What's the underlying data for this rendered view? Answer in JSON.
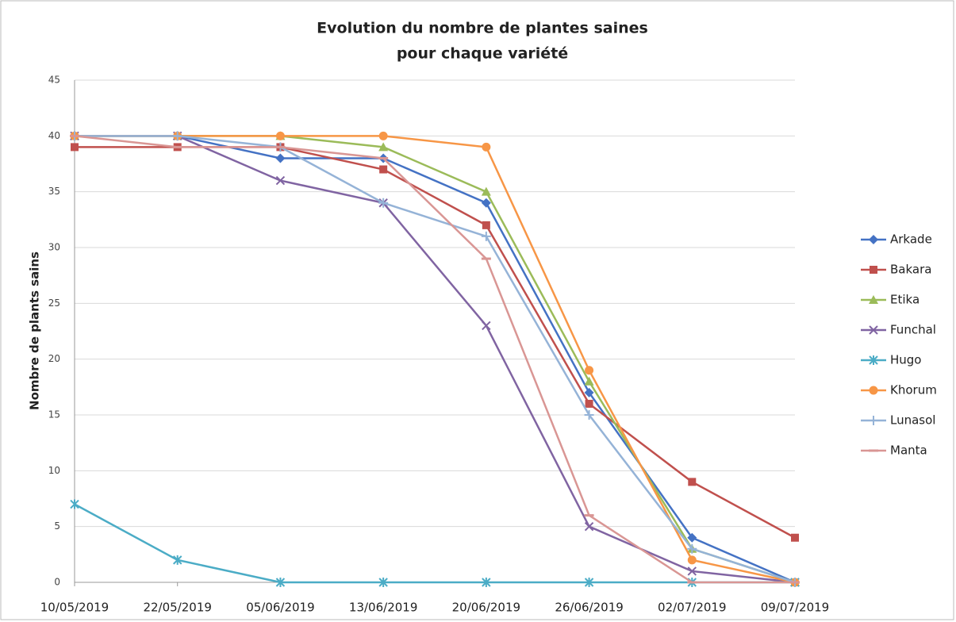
{
  "chart_data": {
    "type": "line",
    "title": [
      "Evolution du nombre de plantes saines",
      "pour chaque variété"
    ],
    "y_label": "Nombre de plants sains",
    "categories": [
      "10/05/2019",
      "22/05/2019",
      "05/06/2019",
      "13/06/2019",
      "20/06/2019",
      "26/06/2019",
      "02/07/2019",
      "09/07/2019"
    ],
    "ylim": [
      0,
      45
    ],
    "yticks": [
      0,
      5,
      10,
      15,
      20,
      25,
      30,
      35,
      40,
      45
    ],
    "grid": true,
    "legend": "right",
    "series": [
      {
        "name": "Arkade",
        "color": "#4472c4",
        "marker": "diamond",
        "values": [
          40,
          40,
          38,
          38,
          34,
          17,
          4,
          0
        ]
      },
      {
        "name": "Bakara",
        "color": "#c0504d",
        "marker": "square",
        "values": [
          39,
          39,
          39,
          37,
          32,
          16,
          9,
          4
        ]
      },
      {
        "name": "Etika",
        "color": "#9bbb59",
        "marker": "triangle",
        "values": [
          40,
          40,
          40,
          39,
          35,
          18,
          3,
          0
        ]
      },
      {
        "name": "Funchal",
        "color": "#8064a2",
        "marker": "x",
        "values": [
          40,
          40,
          36,
          34,
          23,
          5,
          1,
          0
        ]
      },
      {
        "name": "Hugo",
        "color": "#4bacc6",
        "marker": "star",
        "values": [
          7,
          2,
          0,
          0,
          0,
          0,
          0,
          0
        ]
      },
      {
        "name": "Khorum",
        "color": "#f79646",
        "marker": "circle",
        "values": [
          40,
          40,
          40,
          40,
          39,
          19,
          2,
          0
        ]
      },
      {
        "name": "Lunasol",
        "color": "#95b3d7",
        "marker": "plus",
        "values": [
          40,
          40,
          39,
          34,
          31,
          15,
          3,
          0
        ]
      },
      {
        "name": "Manta",
        "color": "#d99694",
        "marker": "dash",
        "values": [
          40,
          39,
          39,
          38,
          29,
          6,
          0,
          0
        ]
      }
    ]
  }
}
